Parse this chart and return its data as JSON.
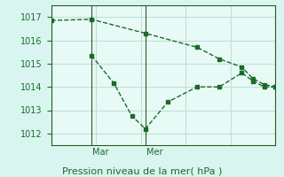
{
  "title": "Pression niveau de la mer( hPa )",
  "bg_color": "#d8f5f0",
  "plot_bg_color": "#e8faf5",
  "grid_color": "#c0e0d8",
  "line_color": "#1a6b2a",
  "spine_color": "#2a5a2a",
  "ylim": [
    1011.5,
    1017.5
  ],
  "yticks": [
    1012,
    1013,
    1014,
    1015,
    1016,
    1017
  ],
  "vline_positions": [
    0.18,
    0.42
  ],
  "vline_labels": [
    "Mar",
    "Mer"
  ],
  "line1_x": [
    0.0,
    0.18,
    0.42,
    0.65,
    0.75,
    0.85,
    0.9,
    0.95,
    1.0
  ],
  "line1_y": [
    1016.85,
    1016.9,
    1016.3,
    1015.7,
    1015.2,
    1014.85,
    1014.35,
    1014.1,
    1014.0
  ],
  "line2_x": [
    0.18,
    0.28,
    0.36,
    0.42,
    0.52,
    0.65,
    0.75,
    0.85,
    0.9,
    0.95,
    1.0
  ],
  "line2_y": [
    1015.35,
    1014.15,
    1012.75,
    1012.2,
    1013.35,
    1014.0,
    1014.0,
    1014.6,
    1014.25,
    1014.0,
    1014.0
  ]
}
